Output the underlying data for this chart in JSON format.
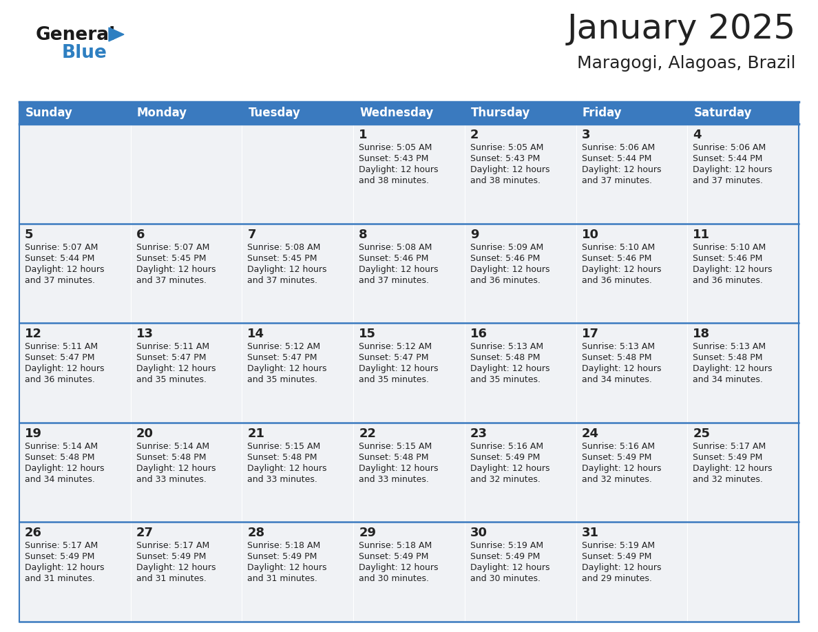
{
  "title": "January 2025",
  "subtitle": "Maragogi, Alagoas, Brazil",
  "header_bg": "#3a7abf",
  "header_text": "#ffffff",
  "cell_bg": "#f0f2f5",
  "row_line_color": "#3a7abf",
  "text_color": "#222222",
  "days_of_week": [
    "Sunday",
    "Monday",
    "Tuesday",
    "Wednesday",
    "Thursday",
    "Friday",
    "Saturday"
  ],
  "calendar_data": [
    [
      {
        "day": "",
        "sunrise": "",
        "sunset": "",
        "daylight": ""
      },
      {
        "day": "",
        "sunrise": "",
        "sunset": "",
        "daylight": ""
      },
      {
        "day": "",
        "sunrise": "",
        "sunset": "",
        "daylight": ""
      },
      {
        "day": "1",
        "sunrise": "Sunrise: 5:05 AM",
        "sunset": "Sunset: 5:43 PM",
        "daylight": "Daylight: 12 hours\nand 38 minutes."
      },
      {
        "day": "2",
        "sunrise": "Sunrise: 5:05 AM",
        "sunset": "Sunset: 5:43 PM",
        "daylight": "Daylight: 12 hours\nand 38 minutes."
      },
      {
        "day": "3",
        "sunrise": "Sunrise: 5:06 AM",
        "sunset": "Sunset: 5:44 PM",
        "daylight": "Daylight: 12 hours\nand 37 minutes."
      },
      {
        "day": "4",
        "sunrise": "Sunrise: 5:06 AM",
        "sunset": "Sunset: 5:44 PM",
        "daylight": "Daylight: 12 hours\nand 37 minutes."
      }
    ],
    [
      {
        "day": "5",
        "sunrise": "Sunrise: 5:07 AM",
        "sunset": "Sunset: 5:44 PM",
        "daylight": "Daylight: 12 hours\nand 37 minutes."
      },
      {
        "day": "6",
        "sunrise": "Sunrise: 5:07 AM",
        "sunset": "Sunset: 5:45 PM",
        "daylight": "Daylight: 12 hours\nand 37 minutes."
      },
      {
        "day": "7",
        "sunrise": "Sunrise: 5:08 AM",
        "sunset": "Sunset: 5:45 PM",
        "daylight": "Daylight: 12 hours\nand 37 minutes."
      },
      {
        "day": "8",
        "sunrise": "Sunrise: 5:08 AM",
        "sunset": "Sunset: 5:46 PM",
        "daylight": "Daylight: 12 hours\nand 37 minutes."
      },
      {
        "day": "9",
        "sunrise": "Sunrise: 5:09 AM",
        "sunset": "Sunset: 5:46 PM",
        "daylight": "Daylight: 12 hours\nand 36 minutes."
      },
      {
        "day": "10",
        "sunrise": "Sunrise: 5:10 AM",
        "sunset": "Sunset: 5:46 PM",
        "daylight": "Daylight: 12 hours\nand 36 minutes."
      },
      {
        "day": "11",
        "sunrise": "Sunrise: 5:10 AM",
        "sunset": "Sunset: 5:46 PM",
        "daylight": "Daylight: 12 hours\nand 36 minutes."
      }
    ],
    [
      {
        "day": "12",
        "sunrise": "Sunrise: 5:11 AM",
        "sunset": "Sunset: 5:47 PM",
        "daylight": "Daylight: 12 hours\nand 36 minutes."
      },
      {
        "day": "13",
        "sunrise": "Sunrise: 5:11 AM",
        "sunset": "Sunset: 5:47 PM",
        "daylight": "Daylight: 12 hours\nand 35 minutes."
      },
      {
        "day": "14",
        "sunrise": "Sunrise: 5:12 AM",
        "sunset": "Sunset: 5:47 PM",
        "daylight": "Daylight: 12 hours\nand 35 minutes."
      },
      {
        "day": "15",
        "sunrise": "Sunrise: 5:12 AM",
        "sunset": "Sunset: 5:47 PM",
        "daylight": "Daylight: 12 hours\nand 35 minutes."
      },
      {
        "day": "16",
        "sunrise": "Sunrise: 5:13 AM",
        "sunset": "Sunset: 5:48 PM",
        "daylight": "Daylight: 12 hours\nand 35 minutes."
      },
      {
        "day": "17",
        "sunrise": "Sunrise: 5:13 AM",
        "sunset": "Sunset: 5:48 PM",
        "daylight": "Daylight: 12 hours\nand 34 minutes."
      },
      {
        "day": "18",
        "sunrise": "Sunrise: 5:13 AM",
        "sunset": "Sunset: 5:48 PM",
        "daylight": "Daylight: 12 hours\nand 34 minutes."
      }
    ],
    [
      {
        "day": "19",
        "sunrise": "Sunrise: 5:14 AM",
        "sunset": "Sunset: 5:48 PM",
        "daylight": "Daylight: 12 hours\nand 34 minutes."
      },
      {
        "day": "20",
        "sunrise": "Sunrise: 5:14 AM",
        "sunset": "Sunset: 5:48 PM",
        "daylight": "Daylight: 12 hours\nand 33 minutes."
      },
      {
        "day": "21",
        "sunrise": "Sunrise: 5:15 AM",
        "sunset": "Sunset: 5:48 PM",
        "daylight": "Daylight: 12 hours\nand 33 minutes."
      },
      {
        "day": "22",
        "sunrise": "Sunrise: 5:15 AM",
        "sunset": "Sunset: 5:48 PM",
        "daylight": "Daylight: 12 hours\nand 33 minutes."
      },
      {
        "day": "23",
        "sunrise": "Sunrise: 5:16 AM",
        "sunset": "Sunset: 5:49 PM",
        "daylight": "Daylight: 12 hours\nand 32 minutes."
      },
      {
        "day": "24",
        "sunrise": "Sunrise: 5:16 AM",
        "sunset": "Sunset: 5:49 PM",
        "daylight": "Daylight: 12 hours\nand 32 minutes."
      },
      {
        "day": "25",
        "sunrise": "Sunrise: 5:17 AM",
        "sunset": "Sunset: 5:49 PM",
        "daylight": "Daylight: 12 hours\nand 32 minutes."
      }
    ],
    [
      {
        "day": "26",
        "sunrise": "Sunrise: 5:17 AM",
        "sunset": "Sunset: 5:49 PM",
        "daylight": "Daylight: 12 hours\nand 31 minutes."
      },
      {
        "day": "27",
        "sunrise": "Sunrise: 5:17 AM",
        "sunset": "Sunset: 5:49 PM",
        "daylight": "Daylight: 12 hours\nand 31 minutes."
      },
      {
        "day": "28",
        "sunrise": "Sunrise: 5:18 AM",
        "sunset": "Sunset: 5:49 PM",
        "daylight": "Daylight: 12 hours\nand 31 minutes."
      },
      {
        "day": "29",
        "sunrise": "Sunrise: 5:18 AM",
        "sunset": "Sunset: 5:49 PM",
        "daylight": "Daylight: 12 hours\nand 30 minutes."
      },
      {
        "day": "30",
        "sunrise": "Sunrise: 5:19 AM",
        "sunset": "Sunset: 5:49 PM",
        "daylight": "Daylight: 12 hours\nand 30 minutes."
      },
      {
        "day": "31",
        "sunrise": "Sunrise: 5:19 AM",
        "sunset": "Sunset: 5:49 PM",
        "daylight": "Daylight: 12 hours\nand 29 minutes."
      },
      {
        "day": "",
        "sunrise": "",
        "sunset": "",
        "daylight": ""
      }
    ]
  ],
  "logo_text_color": "#1a1a1a",
  "logo_blue_color": "#2e7fc1",
  "title_fontsize": 36,
  "subtitle_fontsize": 18,
  "header_fontsize": 12,
  "day_num_fontsize": 13,
  "cell_fontsize": 9
}
